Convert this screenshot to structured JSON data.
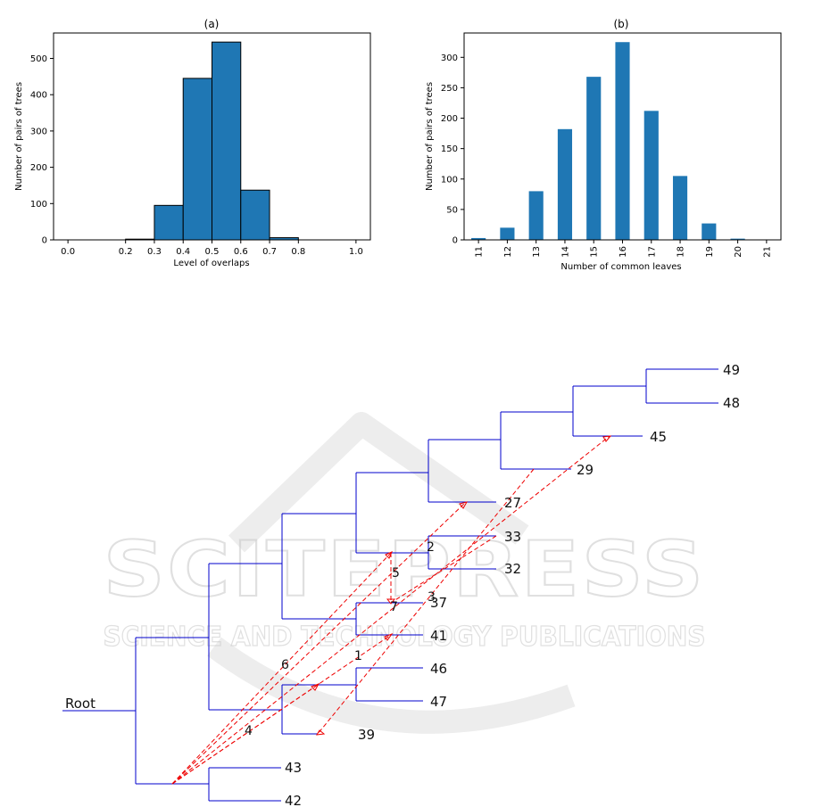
{
  "chart_data": [
    {
      "type": "bar",
      "title": "(a)",
      "xlabel": "Level of overlaps",
      "ylabel": "Number of pairs of trees",
      "xlim": [
        -0.05,
        1.05
      ],
      "ylim": [
        0,
        570
      ],
      "xticks": [
        "0.0",
        "0.2",
        "0.3",
        "0.4",
        "0.5",
        "0.6",
        "0.7",
        "0.8",
        "1.0"
      ],
      "xtick_values": [
        0.0,
        0.2,
        0.3,
        0.4,
        0.5,
        0.6,
        0.7,
        0.8,
        1.0
      ],
      "yticks": [
        0,
        100,
        200,
        300,
        400,
        500
      ],
      "bins": [
        {
          "start": 0.2,
          "end": 0.3,
          "value": 2
        },
        {
          "start": 0.3,
          "end": 0.4,
          "value": 95
        },
        {
          "start": 0.4,
          "end": 0.5,
          "value": 445
        },
        {
          "start": 0.5,
          "end": 0.6,
          "value": 545
        },
        {
          "start": 0.6,
          "end": 0.7,
          "value": 137
        },
        {
          "start": 0.7,
          "end": 0.8,
          "value": 6
        }
      ],
      "color": "#1f77b4"
    },
    {
      "type": "bar",
      "title": "(b)",
      "xlabel": "Number of common leaves",
      "ylabel": "Number of pairs of trees",
      "ylim": [
        0,
        340
      ],
      "yticks": [
        0,
        50,
        100,
        150,
        200,
        250,
        300
      ],
      "categories": [
        "11",
        "12",
        "13",
        "14",
        "15",
        "16",
        "17",
        "18",
        "19",
        "20",
        "21"
      ],
      "values": [
        3,
        20,
        80,
        182,
        268,
        325,
        212,
        105,
        27,
        2,
        0
      ],
      "color": "#1f77b4"
    }
  ],
  "tree": {
    "root_label": "Root",
    "leaves": [
      "49",
      "48",
      "45",
      "29",
      "27",
      "33",
      "32",
      "37",
      "41",
      "46",
      "47",
      "39",
      "43",
      "42"
    ],
    "arrow_labels": [
      "2",
      "5",
      "3",
      "7",
      "6",
      "1",
      "4"
    ],
    "branch_color": "#0000cc",
    "arrow_color": "#ee0000"
  },
  "watermark": {
    "main": "SCITEPRESS",
    "sub": "SCIENCE AND TECHNOLOGY PUBLICATIONS"
  }
}
